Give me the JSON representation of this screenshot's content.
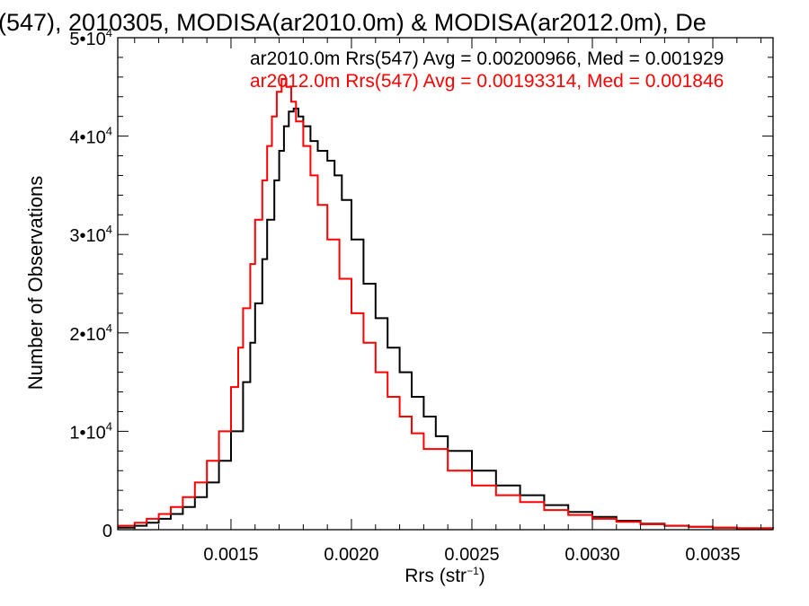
{
  "chart_data": {
    "type": "line",
    "title": "(547), 2010305, MODISA(ar2010.0m) & MODISA(ar2012.0m), De",
    "xlabel": "Rrs (str⁻¹)",
    "ylabel": "Number of Observations",
    "xlim": [
      0.00103,
      0.00375
    ],
    "ylim": [
      0,
      50000
    ],
    "x_ticks": [
      0.0015,
      0.002,
      0.0025,
      0.003,
      0.0035
    ],
    "x_tick_labels": [
      "0.0015",
      "0.0020",
      "0.0025",
      "0.0030",
      "0.0035"
    ],
    "y_ticks": [
      0,
      10000,
      20000,
      30000,
      40000,
      50000
    ],
    "y_tick_labels": [
      {
        "base": "0",
        "exp": ""
      },
      {
        "base": "1•10",
        "exp": "4"
      },
      {
        "base": "2•10",
        "exp": "4"
      },
      {
        "base": "3•10",
        "exp": "4"
      },
      {
        "base": "4•10",
        "exp": "4"
      },
      {
        "base": "5•10",
        "exp": "4"
      }
    ],
    "grid": false,
    "step": true,
    "annotations": [
      {
        "text": "ar2010.0m Rrs(547) Avg = 0.00200966, Med = 0.001929",
        "color": "#000000"
      },
      {
        "text": "ar2012.0m Rrs(547) Avg = 0.00193314, Med = 0.001846",
        "color": "#ff0000"
      }
    ],
    "series": [
      {
        "color": "#000000",
        "x": [
          0.00103,
          0.0011,
          0.00115,
          0.0012,
          0.00125,
          0.0013,
          0.00135,
          0.0014,
          0.00145,
          0.0015,
          0.00155,
          0.00158,
          0.0016,
          0.00163,
          0.00165,
          0.00168,
          0.0017,
          0.00172,
          0.00174,
          0.00176,
          0.00178,
          0.0018,
          0.00183,
          0.00186,
          0.0019,
          0.00193,
          0.00196,
          0.002,
          0.00205,
          0.0021,
          0.00215,
          0.0022,
          0.00225,
          0.0023,
          0.00235,
          0.0024,
          0.0025,
          0.0026,
          0.0027,
          0.0028,
          0.0029,
          0.003,
          0.0031,
          0.0032,
          0.0033,
          0.0034,
          0.0035,
          0.0036,
          0.00375
        ],
        "y": [
          200,
          400,
          700,
          1100,
          1600,
          2300,
          3300,
          4800,
          7000,
          10000,
          15000,
          19000,
          23000,
          27500,
          31500,
          35500,
          38500,
          41000,
          42500,
          42800,
          42000,
          41000,
          39500,
          38500,
          37500,
          36000,
          33500,
          29500,
          25000,
          21500,
          18500,
          16000,
          13500,
          11500,
          9500,
          8000,
          6000,
          4500,
          3500,
          2500,
          1800,
          1300,
          900,
          600,
          400,
          300,
          200,
          150,
          100
        ]
      },
      {
        "color": "#ff0000",
        "x": [
          0.00103,
          0.0011,
          0.00115,
          0.0012,
          0.00125,
          0.0013,
          0.00135,
          0.0014,
          0.00145,
          0.0015,
          0.00153,
          0.00155,
          0.00158,
          0.0016,
          0.00163,
          0.00165,
          0.00167,
          0.00169,
          0.00171,
          0.00173,
          0.00175,
          0.00177,
          0.0018,
          0.00183,
          0.00186,
          0.0019,
          0.00195,
          0.002,
          0.00205,
          0.0021,
          0.00215,
          0.0022,
          0.00225,
          0.0023,
          0.0024,
          0.0025,
          0.0026,
          0.0027,
          0.0028,
          0.0029,
          0.003,
          0.0031,
          0.0032,
          0.0033,
          0.0034,
          0.0035,
          0.0036,
          0.00375
        ],
        "y": [
          400,
          700,
          1100,
          1600,
          2300,
          3300,
          4800,
          7000,
          10000,
          14500,
          18500,
          22500,
          27000,
          31500,
          35500,
          39000,
          42000,
          44500,
          45800,
          45000,
          43500,
          41500,
          39000,
          36000,
          33000,
          29500,
          25500,
          22000,
          19000,
          16000,
          13500,
          11500,
          9800,
          8200,
          6000,
          4500,
          3500,
          2800,
          2000,
          1500,
          1100,
          800,
          550,
          400,
          300,
          200,
          150,
          100
        ]
      }
    ]
  }
}
